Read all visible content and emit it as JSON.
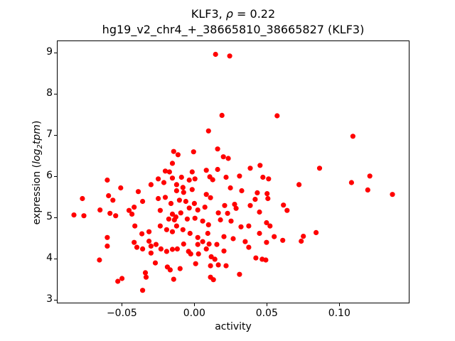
{
  "title": {
    "gene_part": "KLF3, ",
    "rho_symbol": "ρ",
    "rho_part": " = 0.22",
    "subtitle": "hg19_v2_chr4_+_38665810_38665827 (KLF3)"
  },
  "axis_labels": {
    "xlabel": "activity",
    "ylabel_pre": "expression (",
    "ylabel_log": "log",
    "ylabel_sub": "2",
    "ylabel_tpm": "tpm",
    "ylabel_post": ")"
  },
  "chart_data": {
    "type": "scatter",
    "title": "KLF3, ρ = 0.22",
    "subtitle": "hg19_v2_chr4_+_38665810_38665827 (KLF3)",
    "xlabel": "activity",
    "ylabel": "expression (log2 tpm)",
    "legend": "none",
    "grid": false,
    "marker_color": "#ff0000",
    "marker_radius_px": 3.6,
    "xlim": [
      -0.0948,
      0.1484
    ],
    "ylim": [
      2.91,
      9.29
    ],
    "xticks": [
      {
        "v": -0.05,
        "label": "−0.05"
      },
      {
        "v": 0.0,
        "label": "0.00"
      },
      {
        "v": 0.05,
        "label": "0.05"
      },
      {
        "v": 0.1,
        "label": "0.10"
      }
    ],
    "yticks": [
      {
        "v": 3,
        "label": "3"
      },
      {
        "v": 4,
        "label": "4"
      },
      {
        "v": 5,
        "label": "5"
      },
      {
        "v": 6,
        "label": "6"
      },
      {
        "v": 7,
        "label": "7"
      },
      {
        "v": 8,
        "label": "8"
      },
      {
        "v": 9,
        "label": "9"
      }
    ],
    "points": [
      [
        0.0146,
        8.97
      ],
      [
        0.0244,
        8.93
      ],
      [
        0.019,
        7.48
      ],
      [
        0.0097,
        7.1
      ],
      [
        -0.0144,
        6.6
      ],
      [
        -0.0114,
        6.52
      ],
      [
        -0.0006,
        6.59
      ],
      [
        0.016,
        6.66
      ],
      [
        0.02,
        6.47
      ],
      [
        0.0234,
        6.43
      ],
      [
        -0.0153,
        6.31
      ],
      [
        -0.0202,
        6.12
      ],
      [
        -0.0173,
        6.1
      ],
      [
        -0.0016,
        6.1
      ],
      [
        0.0082,
        6.14
      ],
      [
        0.016,
        6.16
      ],
      [
        0.0572,
        7.47
      ],
      [
        0.1097,
        6.97
      ],
      [
        0.0386,
        6.19
      ],
      [
        0.0454,
        6.26
      ],
      [
        0.0866,
        6.19
      ],
      [
        0.1214,
        6.0
      ],
      [
        -0.0604,
        5.9
      ],
      [
        -0.0511,
        5.71
      ],
      [
        -0.0389,
        5.62
      ],
      [
        -0.0301,
        5.79
      ],
      [
        -0.0251,
        5.93
      ],
      [
        -0.0153,
        5.95
      ],
      [
        -0.0212,
        5.84
      ],
      [
        -0.0776,
        5.45
      ],
      [
        -0.0595,
        5.52
      ],
      [
        -0.0565,
        5.41
      ],
      [
        -0.0654,
        5.17
      ],
      [
        -0.0835,
        5.05
      ],
      [
        -0.0766,
        5.03
      ],
      [
        -0.0585,
        5.09
      ],
      [
        -0.0546,
        5.03
      ],
      [
        -0.0453,
        5.16
      ],
      [
        -0.0418,
        5.24
      ],
      [
        -0.0433,
        5.07
      ],
      [
        -0.0359,
        5.38
      ],
      [
        -0.0251,
        5.45
      ],
      [
        -0.0202,
        5.48
      ],
      [
        -0.0163,
        5.33
      ],
      [
        -0.0237,
        5.16
      ],
      [
        -0.0178,
        4.95
      ],
      [
        -0.0153,
        5.07
      ],
      [
        -0.0139,
        4.93
      ],
      [
        -0.0413,
        4.78
      ],
      [
        -0.0237,
        4.78
      ],
      [
        -0.0193,
        4.69
      ],
      [
        -0.0364,
        4.59
      ],
      [
        -0.0315,
        4.64
      ],
      [
        -0.0604,
        4.5
      ],
      [
        -0.0153,
        4.64
      ],
      [
        -0.009,
        5.97
      ],
      [
        -0.0036,
        5.9
      ],
      [
        -0.0124,
        5.79
      ],
      [
        -0.008,
        5.72
      ],
      [
        0.0003,
        5.93
      ],
      [
        0.0106,
        5.98
      ],
      [
        0.0126,
        5.91
      ],
      [
        0.0219,
        5.97
      ],
      [
        0.0312,
        6.0
      ],
      [
        -0.0124,
        5.64
      ],
      [
        -0.0075,
        5.6
      ],
      [
        -0.0016,
        5.67
      ],
      [
        0.0082,
        5.55
      ],
      [
        0.0111,
        5.47
      ],
      [
        0.0249,
        5.71
      ],
      [
        -0.0104,
        5.41
      ],
      [
        -0.006,
        5.38
      ],
      [
        -0.0001,
        5.33
      ],
      [
        -0.0036,
        5.22
      ],
      [
        0.0023,
        5.17
      ],
      [
        0.0072,
        5.24
      ],
      [
        0.0209,
        5.28
      ],
      [
        -0.0095,
        5.1
      ],
      [
        -0.0129,
        5.0
      ],
      [
        -0.005,
        4.95
      ],
      [
        0.0003,
        4.97
      ],
      [
        0.0057,
        4.9
      ],
      [
        0.0097,
        4.81
      ],
      [
        0.0165,
        5.1
      ],
      [
        0.0229,
        5.09
      ],
      [
        0.018,
        4.93
      ],
      [
        0.0253,
        4.9
      ],
      [
        -0.0124,
        4.78
      ],
      [
        -0.008,
        4.69
      ],
      [
        -0.0031,
        4.6
      ],
      [
        0.0023,
        4.5
      ],
      [
        0.0092,
        4.6
      ],
      [
        0.0204,
        4.52
      ],
      [
        0.0268,
        4.47
      ],
      [
        0.0278,
        5.31
      ],
      [
        0.0057,
        4.4
      ],
      [
        0.0474,
        5.97
      ],
      [
        0.0513,
        5.93
      ],
      [
        0.0327,
        5.64
      ],
      [
        0.0435,
        5.59
      ],
      [
        0.0503,
        5.57
      ],
      [
        0.0508,
        5.45
      ],
      [
        0.042,
        5.43
      ],
      [
        0.0288,
        5.21
      ],
      [
        0.0386,
        5.28
      ],
      [
        0.045,
        5.12
      ],
      [
        0.0322,
        4.76
      ],
      [
        0.0376,
        4.78
      ],
      [
        0.0499,
        4.86
      ],
      [
        0.0523,
        4.78
      ],
      [
        0.045,
        4.6
      ],
      [
        0.0351,
        4.4
      ],
      [
        0.0616,
        5.29
      ],
      [
        0.0641,
        5.16
      ],
      [
        0.0552,
        4.52
      ],
      [
        0.0611,
        4.43
      ],
      [
        0.0724,
        5.79
      ],
      [
        0.1087,
        5.84
      ],
      [
        0.12,
        5.66
      ],
      [
        0.1371,
        5.55
      ],
      [
        0.0842,
        4.62
      ],
      [
        0.0754,
        4.53
      ],
      [
        0.0739,
        4.41
      ],
      [
        -0.0604,
        4.29
      ],
      [
        -0.0418,
        4.38
      ],
      [
        -0.0399,
        4.26
      ],
      [
        -0.0359,
        4.22
      ],
      [
        -0.0315,
        4.41
      ],
      [
        -0.0301,
        4.29
      ],
      [
        -0.0266,
        4.33
      ],
      [
        -0.0232,
        4.22
      ],
      [
        -0.0193,
        4.16
      ],
      [
        -0.0658,
        3.95
      ],
      [
        -0.0301,
        4.12
      ],
      [
        -0.0271,
        3.88
      ],
      [
        -0.0188,
        3.78
      ],
      [
        -0.0168,
        3.71
      ],
      [
        -0.0531,
        3.43
      ],
      [
        -0.0502,
        3.5
      ],
      [
        -0.034,
        3.64
      ],
      [
        -0.0335,
        3.53
      ],
      [
        -0.0359,
        3.21
      ],
      [
        -0.0153,
        4.21
      ],
      [
        -0.0144,
        3.48
      ],
      [
        -0.0075,
        4.34
      ],
      [
        -0.0119,
        4.22
      ],
      [
        -0.0041,
        4.16
      ],
      [
        0.0023,
        4.33
      ],
      [
        -0.0026,
        4.1
      ],
      [
        0.0028,
        4.1
      ],
      [
        0.0082,
        4.22
      ],
      [
        0.0101,
        4.34
      ],
      [
        0.0155,
        4.33
      ],
      [
        0.0204,
        4.17
      ],
      [
        0.0116,
        4.03
      ],
      [
        0.0141,
        3.97
      ],
      [
        0.0008,
        3.86
      ],
      [
        -0.01,
        3.74
      ],
      [
        0.0111,
        3.81
      ],
      [
        0.0165,
        3.83
      ],
      [
        0.0219,
        3.81
      ],
      [
        0.0111,
        3.53
      ],
      [
        0.0131,
        3.47
      ],
      [
        0.0312,
        3.6
      ],
      [
        0.0376,
        4.26
      ],
      [
        0.0425,
        4.0
      ],
      [
        0.0469,
        3.97
      ],
      [
        0.0494,
        3.95
      ],
      [
        0.0499,
        4.38
      ]
    ]
  }
}
